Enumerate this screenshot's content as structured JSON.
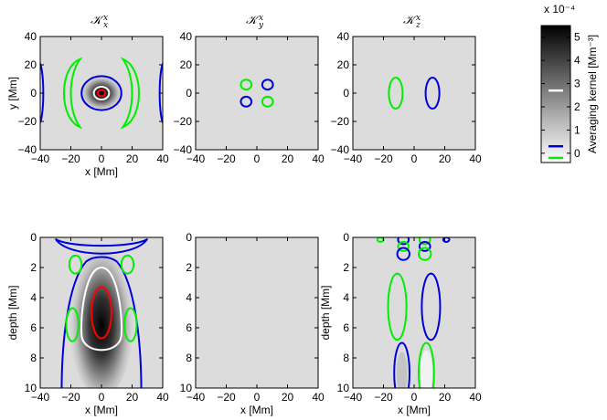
{
  "chart_data": [
    {
      "type": "heatmap",
      "title": "𝒦",
      "title_sub": "x",
      "title_sup": "x",
      "view": "horizontal",
      "xlabel": "x [Mm]",
      "ylabel": "y [Mm]",
      "xlim": [
        -40,
        40
      ],
      "ylim": [
        -40,
        40
      ],
      "xticks": [
        "−40",
        "−20",
        "0",
        "20",
        "40"
      ],
      "yticks": [
        "40",
        "20",
        "0",
        "−20",
        "−40"
      ],
      "contours": [
        {
          "level": "0",
          "color": "#00ee00",
          "shape": "ring-pair",
          "note": "two arcs left and right"
        },
        {
          "level": "−",
          "color": "#0000dd",
          "shape": "ellipse",
          "cx": 0,
          "cy": 0,
          "rx": 13,
          "ry": 12
        },
        {
          "level": "+",
          "color": "#ffffff",
          "shape": "ellipse",
          "cx": 0,
          "cy": 0,
          "rx": 5,
          "ry": 4.5
        },
        {
          "level": "++",
          "color": "#ff0000",
          "shape": "ellipse",
          "cx": 0,
          "cy": 0,
          "rx": 2.5,
          "ry": 2.2
        }
      ]
    },
    {
      "type": "heatmap",
      "title": "𝒦",
      "title_sub": "y",
      "title_sup": "x",
      "view": "horizontal",
      "xlabel": "",
      "ylabel": "",
      "xlim": [
        -40,
        40
      ],
      "ylim": [
        -40,
        40
      ],
      "xticks": [
        "−40",
        "−20",
        "0",
        "20",
        "40"
      ],
      "yticks": [
        "40",
        "20",
        "0",
        "−20",
        "−40"
      ],
      "contours": [
        {
          "color": "#00ee00",
          "cx": -7,
          "cy": 6,
          "rx": 3.5,
          "ry": 3.5
        },
        {
          "color": "#0000dd",
          "cx": 7,
          "cy": 6,
          "rx": 3.5,
          "ry": 3.5
        },
        {
          "color": "#0000dd",
          "cx": -7,
          "cy": -6,
          "rx": 3.5,
          "ry": 3.5
        },
        {
          "color": "#00ee00",
          "cx": 7,
          "cy": -6,
          "rx": 3.5,
          "ry": 3.5
        }
      ]
    },
    {
      "type": "heatmap",
      "title": "𝒦",
      "title_sub": "z",
      "title_sup": "x",
      "view": "horizontal",
      "xlabel": "",
      "ylabel": "",
      "xlim": [
        -40,
        40
      ],
      "ylim": [
        -40,
        40
      ],
      "xticks": [
        "−40",
        "−20",
        "0",
        "20",
        "40"
      ],
      "yticks": [
        "40",
        "20",
        "0",
        "−20",
        "−40"
      ],
      "contours": [
        {
          "color": "#00ee00",
          "cx": -12,
          "cy": 0,
          "rx": 4.5,
          "ry": 11
        },
        {
          "color": "#0000dd",
          "cx": 12,
          "cy": 0,
          "rx": 4.5,
          "ry": 11
        }
      ]
    },
    {
      "type": "heatmap",
      "view": "vertical",
      "xlabel": "x [Mm]",
      "ylabel": "depth [Mm]",
      "xlim": [
        -40,
        40
      ],
      "ylim": [
        0,
        10
      ],
      "xticks": [
        "−40",
        "−20",
        "0",
        "20",
        "40"
      ],
      "yticks": [
        "0",
        "2",
        "4",
        "6",
        "8",
        "10"
      ],
      "contours": [
        {
          "color": "#0000dd",
          "shape": "blob-top",
          "note": "band near surface"
        },
        {
          "color": "#0000dd",
          "shape": "plume",
          "note": "outer envelope"
        },
        {
          "color": "#00ee00",
          "cx": -17,
          "cy": 1.8,
          "rx": 4,
          "ry": 0.6
        },
        {
          "color": "#00ee00",
          "cx": 17,
          "cy": 1.8,
          "rx": 4,
          "ry": 0.6
        },
        {
          "color": "#00ee00",
          "cx": -19,
          "cy": 5.8,
          "rx": 4,
          "ry": 1.1
        },
        {
          "color": "#00ee00",
          "cx": 19,
          "cy": 5.8,
          "rx": 4,
          "ry": 1.1
        },
        {
          "color": "#ffffff",
          "shape": "plume-inner"
        },
        {
          "color": "#ff0000",
          "cx": 0,
          "cy": 5,
          "rx": 6.5,
          "ry": 1.7
        }
      ]
    },
    {
      "type": "heatmap",
      "view": "vertical",
      "xlabel": "x [Mm]",
      "ylabel": "",
      "xlim": [
        -40,
        40
      ],
      "ylim": [
        0,
        10
      ],
      "xticks": [
        "−40",
        "−20",
        "0",
        "20",
        "40"
      ],
      "yticks": [
        "0",
        "2",
        "4",
        "6",
        "8",
        "10"
      ],
      "contours": []
    },
    {
      "type": "heatmap",
      "view": "vertical",
      "xlabel": "x [Mm]",
      "ylabel": "depth [Mm]",
      "xlim": [
        -40,
        40
      ],
      "ylim": [
        0,
        10
      ],
      "xticks": [
        "−40",
        "−20",
        "0",
        "20",
        "40"
      ],
      "yticks": [
        "0",
        "2",
        "4",
        "6",
        "8",
        "10"
      ],
      "contours": [
        {
          "color": "#00ee00",
          "cx": -22,
          "cy": 0.15,
          "rx": 2,
          "ry": 0.15
        },
        {
          "color": "#0000dd",
          "cx": -7,
          "cy": 0.15,
          "rx": 3.5,
          "ry": 0.3
        },
        {
          "color": "#00ee00",
          "cx": 7,
          "cy": 0.15,
          "rx": 3.5,
          "ry": 0.3
        },
        {
          "color": "#0000dd",
          "cx": 21,
          "cy": 0.15,
          "rx": 2,
          "ry": 0.15
        },
        {
          "color": "#00ee00",
          "cx": -7,
          "cy": 0.6,
          "rx": 3.5,
          "ry": 0.3
        },
        {
          "color": "#0000dd",
          "cx": 7,
          "cy": 0.6,
          "rx": 3.5,
          "ry": 0.3
        },
        {
          "color": "#0000dd",
          "cx": -7,
          "cy": 1.1,
          "rx": 4,
          "ry": 0.4
        },
        {
          "color": "#00ee00",
          "cx": 7,
          "cy": 1.1,
          "rx": 4,
          "ry": 0.4
        },
        {
          "color": "#00ee00",
          "cx": -11,
          "cy": 4.6,
          "rx": 6,
          "ry": 2.2
        },
        {
          "color": "#0000dd",
          "cx": 11,
          "cy": 4.6,
          "rx": 6,
          "ry": 2.2
        },
        {
          "color": "#0000dd",
          "cx": -8,
          "cy": 9,
          "rx": 5,
          "ry": 2
        },
        {
          "color": "#00ee00",
          "cx": 8,
          "cy": 9,
          "rx": 5,
          "ry": 2
        }
      ]
    }
  ],
  "colorbar": {
    "label": "Averaging kernel [Mm⁻³]",
    "exponent": "x 10⁻⁴",
    "ticks": [
      "5",
      "4",
      "3",
      "2",
      "1",
      "0"
    ],
    "range": [
      -0.4,
      5.5
    ],
    "markers": [
      {
        "value": 2.7,
        "color": "#ffffff"
      },
      {
        "value": 0.3,
        "color": "#0000dd"
      },
      {
        "value": -0.2,
        "color": "#00ee00"
      }
    ]
  },
  "colors": {
    "blue": "#0000dd",
    "green": "#00ee00",
    "white": "#ffffff",
    "red": "#ff0000",
    "background": "#dcdcdc"
  }
}
